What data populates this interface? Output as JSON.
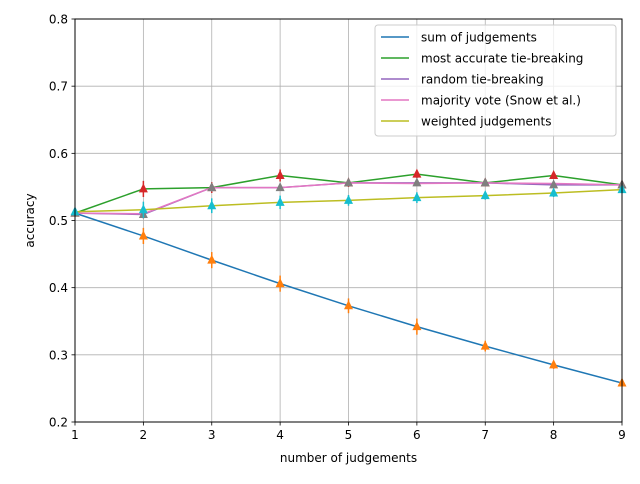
{
  "chart_data": {
    "type": "line",
    "title": "",
    "xlabel": "number of judgements",
    "ylabel": "accuracy",
    "xlim": [
      1,
      9
    ],
    "ylim": [
      0.2,
      0.8
    ],
    "xticks": [
      1,
      2,
      3,
      4,
      5,
      6,
      7,
      8,
      9
    ],
    "yticks": [
      0.2,
      0.3,
      0.4,
      0.5,
      0.6,
      0.7,
      0.8
    ],
    "ytick_labels": [
      "0.2",
      "0.3",
      "0.4",
      "0.5",
      "0.6",
      "0.7",
      "0.8"
    ],
    "grid": true,
    "legend_position": "top-right",
    "x": [
      1,
      2,
      3,
      4,
      5,
      6,
      7,
      8,
      9
    ],
    "series": [
      {
        "name": "sum of judgements",
        "color": "#1f77b4",
        "values": [
          0.511,
          0.477,
          0.441,
          0.406,
          0.373,
          0.342,
          0.313,
          0.285,
          0.258
        ],
        "markers": {
          "color": "#ff7f0e",
          "values": [
            0.511,
            0.477,
            0.441,
            0.406,
            0.373,
            0.342,
            0.313,
            0.285,
            0.258
          ],
          "err": [
            0.003,
            0.012,
            0.012,
            0.012,
            0.011,
            0.012,
            0.008,
            0.006,
            0.004
          ]
        }
      },
      {
        "name": "most accurate tie-breaking",
        "color": "#2ca02c",
        "values": [
          0.511,
          0.547,
          0.549,
          0.567,
          0.556,
          0.569,
          0.556,
          0.567,
          0.553
        ],
        "markers": {
          "color": "#d62728",
          "values": [
            0.511,
            0.547,
            0.549,
            0.567,
            0.556,
            0.569,
            0.556,
            0.567,
            0.553
          ],
          "err": [
            0.003,
            0.012,
            0.008,
            0.009,
            0.006,
            0.006,
            0.004,
            0.004,
            0.002
          ]
        }
      },
      {
        "name": "random tie-breaking",
        "color": "#9467bd",
        "values": [
          0.511,
          0.509,
          0.549,
          0.549,
          0.556,
          0.556,
          0.556,
          0.553,
          0.553
        ],
        "markers": {
          "color": "#7f7f7f",
          "values": [
            0.511,
            0.509,
            0.549,
            0.549,
            0.556,
            0.556,
            0.556,
            0.553,
            0.553
          ],
          "err": [
            0.003,
            0.006,
            0.006,
            0.005,
            0.004,
            0.004,
            0.003,
            0.003,
            0.002
          ]
        }
      },
      {
        "name": "majority vote (Snow et al.)",
        "color": "#e377c2",
        "values": [
          0.511,
          0.51,
          0.549,
          0.549,
          0.556,
          0.555,
          0.556,
          0.555,
          0.553
        ],
        "markers": null
      },
      {
        "name": "weighted judgements",
        "color": "#bcbd22",
        "values": [
          0.513,
          0.516,
          0.522,
          0.527,
          0.53,
          0.534,
          0.537,
          0.541,
          0.546
        ],
        "markers": {
          "color": "#17becf",
          "values": [
            0.513,
            0.516,
            0.522,
            0.527,
            0.53,
            0.534,
            0.537,
            0.541,
            0.546
          ],
          "err": [
            0.003,
            0.012,
            0.011,
            0.01,
            0.008,
            0.008,
            0.006,
            0.006,
            0.005
          ]
        }
      }
    ]
  }
}
